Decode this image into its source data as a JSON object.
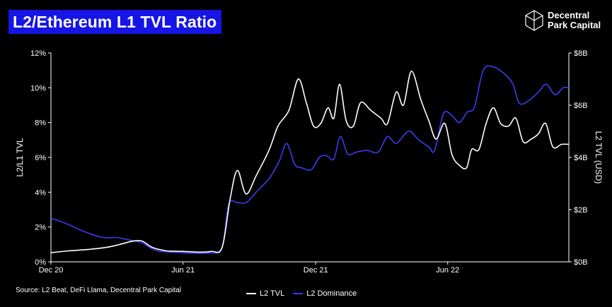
{
  "header": {
    "title": "L2/Ethereum L1 TVL Ratio",
    "logo_line1": "Decentral",
    "logo_line2": "Park Capital"
  },
  "footer": {
    "source": "Source: L2 Beat, DeFi Llama, Decentral Park Capital"
  },
  "colors": {
    "background": "#000000",
    "title_bg": "#1515e6",
    "l2_tvl": "#ffffff",
    "l2_dominance": "#3b3bf0"
  },
  "chart_data": {
    "type": "line",
    "title": "L2/Ethereum L1 TVL Ratio",
    "xlabel": "",
    "ylabel_left": "L2/L1 TVL",
    "ylabel_right": "L2 TVL (USD)",
    "x_tick_labels": [
      "Dec 20",
      "Jun 21",
      "Dec 21",
      "Jun 22"
    ],
    "x_tick_positions": [
      "2020-12-01",
      "2021-06-01",
      "2021-12-01",
      "2022-06-01"
    ],
    "x_range": [
      "2020-12-01",
      "2022-11-15"
    ],
    "y_left_ticks": [
      "0%",
      "2%",
      "4%",
      "6%",
      "8%",
      "10%",
      "12%"
    ],
    "y_left_range": [
      0,
      12
    ],
    "y_right_ticks": [
      "$0B",
      "$2B",
      "$4B",
      "$6B",
      "$8B"
    ],
    "y_right_range": [
      0,
      8
    ],
    "grid": false,
    "legend_position": "bottom",
    "series": [
      {
        "name": "L2 TVL",
        "axis": "right",
        "unit": "USD billions",
        "points": [
          [
            "2020-12-01",
            0.35
          ],
          [
            "2020-12-25",
            0.42
          ],
          [
            "2021-01-20",
            0.47
          ],
          [
            "2021-02-15",
            0.55
          ],
          [
            "2021-03-05",
            0.66
          ],
          [
            "2021-03-22",
            0.78
          ],
          [
            "2021-04-05",
            0.8
          ],
          [
            "2021-04-20",
            0.55
          ],
          [
            "2021-05-10",
            0.42
          ],
          [
            "2021-06-01",
            0.4
          ],
          [
            "2021-06-25",
            0.37
          ],
          [
            "2021-07-10",
            0.4
          ],
          [
            "2021-07-25",
            0.55
          ],
          [
            "2021-08-05",
            2.4
          ],
          [
            "2021-08-15",
            3.5
          ],
          [
            "2021-08-27",
            2.6
          ],
          [
            "2021-09-10",
            3.3
          ],
          [
            "2021-09-28",
            4.3
          ],
          [
            "2021-10-10",
            5.2
          ],
          [
            "2021-10-25",
            5.8
          ],
          [
            "2021-11-07",
            7.0
          ],
          [
            "2021-11-18",
            6.1
          ],
          [
            "2021-11-28",
            5.2
          ],
          [
            "2021-12-08",
            5.3
          ],
          [
            "2021-12-18",
            5.9
          ],
          [
            "2021-12-26",
            5.5
          ],
          [
            "2022-01-03",
            6.8
          ],
          [
            "2022-01-12",
            5.4
          ],
          [
            "2022-01-22",
            5.2
          ],
          [
            "2022-02-01",
            6.1
          ],
          [
            "2022-02-15",
            5.8
          ],
          [
            "2022-03-01",
            5.5
          ],
          [
            "2022-03-10",
            5.3
          ],
          [
            "2022-03-22",
            6.5
          ],
          [
            "2022-04-01",
            6.0
          ],
          [
            "2022-04-12",
            7.3
          ],
          [
            "2022-04-25",
            6.2
          ],
          [
            "2022-05-06",
            5.4
          ],
          [
            "2022-05-16",
            4.7
          ],
          [
            "2022-05-28",
            5.3
          ],
          [
            "2022-06-07",
            4.1
          ],
          [
            "2022-06-17",
            3.7
          ],
          [
            "2022-06-27",
            3.6
          ],
          [
            "2022-07-04",
            4.3
          ],
          [
            "2022-07-14",
            4.3
          ],
          [
            "2022-07-24",
            5.3
          ],
          [
            "2022-08-03",
            5.9
          ],
          [
            "2022-08-13",
            5.3
          ],
          [
            "2022-08-24",
            5.2
          ],
          [
            "2022-09-03",
            5.5
          ],
          [
            "2022-09-13",
            4.6
          ],
          [
            "2022-09-24",
            4.7
          ],
          [
            "2022-10-04",
            4.9
          ],
          [
            "2022-10-14",
            5.3
          ],
          [
            "2022-10-24",
            4.4
          ],
          [
            "2022-11-05",
            4.5
          ],
          [
            "2022-11-15",
            4.5
          ]
        ]
      },
      {
        "name": "L2 Dominance",
        "axis": "left",
        "unit": "%",
        "points": [
          [
            "2020-12-01",
            2.5
          ],
          [
            "2020-12-22",
            2.2
          ],
          [
            "2021-01-15",
            1.75
          ],
          [
            "2021-02-10",
            1.4
          ],
          [
            "2021-03-01",
            1.4
          ],
          [
            "2021-03-20",
            1.25
          ],
          [
            "2021-04-05",
            1.1
          ],
          [
            "2021-04-25",
            0.65
          ],
          [
            "2021-05-20",
            0.55
          ],
          [
            "2021-06-15",
            0.5
          ],
          [
            "2021-07-10",
            0.52
          ],
          [
            "2021-07-25",
            0.8
          ],
          [
            "2021-08-03",
            3.3
          ],
          [
            "2021-08-15",
            3.4
          ],
          [
            "2021-08-27",
            3.4
          ],
          [
            "2021-09-10",
            4.0
          ],
          [
            "2021-09-28",
            4.8
          ],
          [
            "2021-10-12",
            5.8
          ],
          [
            "2021-10-22",
            6.8
          ],
          [
            "2021-11-02",
            5.6
          ],
          [
            "2021-11-12",
            5.4
          ],
          [
            "2021-11-25",
            5.3
          ],
          [
            "2021-12-06",
            6.0
          ],
          [
            "2021-12-16",
            6.1
          ],
          [
            "2021-12-26",
            5.9
          ],
          [
            "2022-01-04",
            7.2
          ],
          [
            "2022-01-14",
            6.2
          ],
          [
            "2022-01-26",
            6.3
          ],
          [
            "2022-02-10",
            6.4
          ],
          [
            "2022-02-25",
            6.3
          ],
          [
            "2022-03-10",
            7.2
          ],
          [
            "2022-03-22",
            6.8
          ],
          [
            "2022-04-08",
            7.5
          ],
          [
            "2022-04-22",
            7.0
          ],
          [
            "2022-05-06",
            6.6
          ],
          [
            "2022-05-14",
            6.4
          ],
          [
            "2022-05-26",
            8.5
          ],
          [
            "2022-06-07",
            8.4
          ],
          [
            "2022-06-17",
            8.0
          ],
          [
            "2022-06-28",
            8.6
          ],
          [
            "2022-07-08",
            8.9
          ],
          [
            "2022-07-20",
            11.0
          ],
          [
            "2022-08-03",
            11.2
          ],
          [
            "2022-08-18",
            10.8
          ],
          [
            "2022-08-30",
            10.2
          ],
          [
            "2022-09-08",
            9.1
          ],
          [
            "2022-09-22",
            9.3
          ],
          [
            "2022-10-05",
            9.8
          ],
          [
            "2022-10-15",
            10.2
          ],
          [
            "2022-10-27",
            9.6
          ],
          [
            "2022-11-07",
            10.0
          ],
          [
            "2022-11-15",
            10.0
          ]
        ]
      }
    ]
  }
}
